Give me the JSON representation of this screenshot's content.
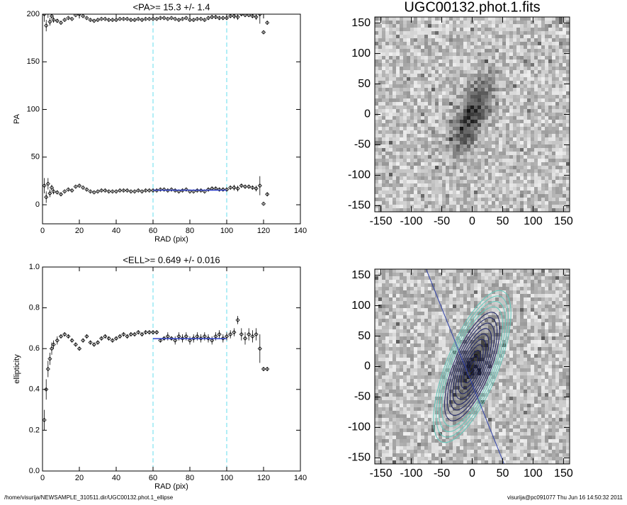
{
  "chart_data": [
    {
      "type": "scatter",
      "title": "<PA>= 15.3 +/-   1.4",
      "xlabel": "RAD (pix)",
      "ylabel": "PA",
      "xlim": [
        0,
        140
      ],
      "ylim": [
        -20,
        200
      ],
      "xticks": [
        0,
        20,
        40,
        60,
        80,
        100,
        120,
        140
      ],
      "yticks": [
        0,
        50,
        100,
        150,
        200
      ],
      "vlines": [
        60,
        100
      ],
      "fit": {
        "x": [
          60,
          100
        ],
        "y": 15.3,
        "color": "#3344cc"
      },
      "color": "#000000",
      "vline_color": "#66ddee",
      "x": [
        1,
        2,
        3,
        4,
        5,
        6,
        8,
        10,
        12,
        14,
        16,
        18,
        20,
        22,
        24,
        26,
        28,
        30,
        32,
        34,
        36,
        38,
        40,
        42,
        44,
        46,
        48,
        50,
        52,
        54,
        56,
        58,
        60,
        62,
        64,
        66,
        68,
        70,
        72,
        74,
        76,
        78,
        80,
        82,
        84,
        86,
        88,
        90,
        92,
        94,
        96,
        98,
        100,
        102,
        104,
        106,
        108,
        110,
        112,
        114,
        116,
        118,
        120,
        122
      ],
      "series": [
        {
          "values": [
            20,
            8,
            22,
            12,
            18,
            14,
            13,
            11,
            14,
            16,
            15,
            19,
            20,
            18,
            16,
            14,
            13,
            14,
            15,
            15,
            14,
            14,
            14,
            15,
            15,
            15,
            14,
            14,
            15,
            14,
            15,
            15,
            15,
            15,
            16,
            16,
            15,
            16,
            15,
            14,
            15,
            16,
            14,
            14,
            15,
            15,
            14,
            16,
            17,
            17,
            16,
            16,
            16,
            18,
            18,
            17,
            20,
            19,
            19,
            18,
            17,
            20,
            1,
            11
          ],
          "errors": [
            8,
            6,
            6,
            4,
            3,
            3,
            2,
            2,
            1,
            1,
            1,
            1,
            1,
            1,
            1,
            1,
            1,
            1,
            1,
            1,
            1,
            1,
            1,
            1,
            1,
            1,
            1,
            1,
            1,
            1,
            1,
            1,
            1,
            1,
            1,
            1,
            1,
            1,
            1,
            1,
            1,
            1,
            1,
            1,
            1,
            1,
            1,
            2,
            2,
            2,
            2,
            2,
            2,
            2,
            3,
            3,
            2,
            2,
            2,
            2,
            3,
            10,
            1,
            2
          ]
        },
        {
          "values": [
            200,
            188,
            202,
            192,
            198,
            194,
            193,
            191,
            194,
            196,
            195,
            199,
            200,
            198,
            196,
            194,
            193,
            194,
            195,
            195,
            194,
            194,
            194,
            195,
            195,
            195,
            194,
            194,
            195,
            194,
            195,
            195,
            195,
            195,
            196,
            196,
            195,
            196,
            195,
            194,
            195,
            196,
            194,
            194,
            195,
            195,
            194,
            196,
            197,
            197,
            196,
            196,
            196,
            198,
            198,
            197,
            200,
            199,
            199,
            198,
            197,
            200,
            181,
            191
          ],
          "errors": [
            8,
            6,
            6,
            4,
            3,
            3,
            2,
            2,
            1,
            1,
            1,
            1,
            1,
            1,
            1,
            1,
            1,
            1,
            1,
            1,
            1,
            1,
            1,
            1,
            1,
            1,
            1,
            1,
            1,
            1,
            1,
            1,
            1,
            1,
            1,
            1,
            1,
            1,
            1,
            1,
            1,
            1,
            1,
            1,
            1,
            1,
            1,
            2,
            2,
            2,
            2,
            2,
            2,
            2,
            3,
            3,
            2,
            2,
            2,
            2,
            3,
            10,
            1,
            2
          ]
        }
      ]
    },
    {
      "type": "image",
      "title": "UGC00132.phot.1.fits",
      "xlim": [
        -160,
        160
      ],
      "ylim": [
        -160,
        160
      ],
      "xticks": [
        -150,
        -100,
        -50,
        0,
        50,
        100,
        150
      ],
      "yticks": [
        -150,
        -100,
        -50,
        0,
        50,
        100,
        150
      ]
    },
    {
      "type": "scatter",
      "title": "<ELL>= 0.649 +/-  0.016",
      "xlabel": "RAD (pix)",
      "ylabel": "ellipticity",
      "xlim": [
        0,
        140
      ],
      "ylim": [
        0,
        1
      ],
      "xticks": [
        0,
        20,
        40,
        60,
        80,
        100,
        120,
        140
      ],
      "yticks": [
        {
          "value": 0,
          "label": "0.0"
        },
        0.2,
        0.4,
        0.6,
        0.8,
        {
          "value": 1,
          "label": "1.0"
        }
      ],
      "vlines": [
        60,
        100
      ],
      "fit": {
        "x": [
          60,
          100
        ],
        "y": 0.649,
        "color": "#3344cc"
      },
      "color": "#000000",
      "vline_color": "#66ddee",
      "x": [
        1,
        2,
        3,
        4,
        5,
        6,
        8,
        10,
        12,
        14,
        16,
        18,
        20,
        22,
        24,
        26,
        28,
        30,
        32,
        34,
        36,
        38,
        40,
        42,
        44,
        46,
        48,
        50,
        52,
        54,
        56,
        58,
        60,
        62,
        64,
        66,
        68,
        70,
        72,
        74,
        76,
        78,
        80,
        82,
        84,
        86,
        88,
        90,
        92,
        94,
        96,
        98,
        100,
        102,
        104,
        106,
        108,
        110,
        112,
        114,
        116,
        118,
        120,
        122
      ],
      "series": [
        {
          "values": [
            0.25,
            0.4,
            0.5,
            0.55,
            0.6,
            0.62,
            0.64,
            0.66,
            0.67,
            0.66,
            0.64,
            0.62,
            0.6,
            0.64,
            0.66,
            0.63,
            0.62,
            0.63,
            0.65,
            0.66,
            0.65,
            0.64,
            0.65,
            0.66,
            0.67,
            0.66,
            0.67,
            0.67,
            0.68,
            0.67,
            0.68,
            0.68,
            0.68,
            0.68,
            0.64,
            0.65,
            0.66,
            0.65,
            0.64,
            0.66,
            0.65,
            0.66,
            0.64,
            0.65,
            0.66,
            0.65,
            0.66,
            0.65,
            0.64,
            0.66,
            0.67,
            0.65,
            0.66,
            0.67,
            0.68,
            0.74,
            0.67,
            0.65,
            0.67,
            0.66,
            0.67,
            0.6,
            0.5,
            0.5
          ],
          "errors": [
            0.05,
            0.05,
            0.04,
            0.03,
            0.03,
            0.02,
            0.02,
            0.01,
            0.01,
            0.01,
            0.01,
            0.01,
            0.01,
            0.01,
            0.01,
            0.01,
            0.01,
            0.01,
            0.01,
            0.01,
            0.01,
            0.01,
            0.01,
            0.01,
            0.01,
            0.01,
            0.01,
            0.01,
            0.01,
            0.01,
            0.01,
            0.01,
            0.01,
            0.01,
            0.01,
            0.01,
            0.02,
            0.01,
            0.02,
            0.02,
            0.02,
            0.02,
            0.02,
            0.02,
            0.02,
            0.02,
            0.02,
            0.02,
            0.02,
            0.02,
            0.02,
            0.02,
            0.02,
            0.02,
            0.02,
            0.02,
            0.03,
            0.03,
            0.03,
            0.03,
            0.03,
            0.07,
            0.01,
            0.01
          ]
        }
      ]
    },
    {
      "type": "image",
      "xlim": [
        -160,
        160
      ],
      "ylim": [
        -160,
        160
      ],
      "xticks": [
        -150,
        -100,
        -50,
        0,
        50,
        100,
        150
      ],
      "yticks": [
        -150,
        -100,
        -50,
        0,
        50,
        100,
        150
      ],
      "contours": true
    }
  ],
  "footer": {
    "left": "/home/visurija/NEWSAMPLE_310511.dir/UGC00132.phot.1_ellipse",
    "right": "visurija@pc091077  Thu Jun 16 14:50:32 2011"
  }
}
